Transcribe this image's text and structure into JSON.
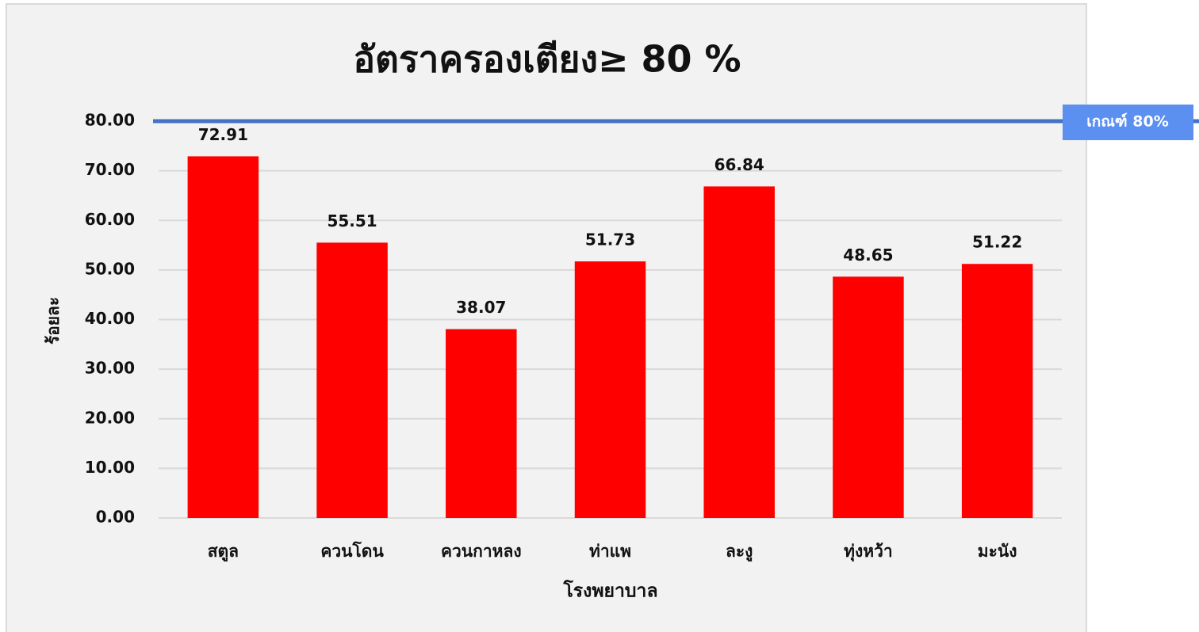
{
  "chart_data": {
    "type": "bar",
    "title": "อัตราครองเตียง≥ 80 %",
    "x_label": "โรงพยาบาล",
    "y_label": "ร้อยละ",
    "categories": [
      "สตูล",
      "ควนโดน",
      "ควนกาหลง",
      "ท่าแพ",
      "ละงู",
      "ทุ่งหว้า",
      "มะนัง"
    ],
    "values": [
      72.91,
      55.51,
      38.07,
      51.73,
      66.84,
      48.65,
      51.22
    ],
    "color": "#ff0000",
    "ylim": [
      0,
      80
    ],
    "yticks": [
      {
        "value": 0,
        "label": "0.00"
      },
      {
        "value": 10,
        "label": "10.00"
      },
      {
        "value": 20,
        "label": "20.00"
      },
      {
        "value": 30,
        "label": "30.00"
      },
      {
        "value": 40,
        "label": "40.00"
      },
      {
        "value": 50,
        "label": "50.00"
      },
      {
        "value": 60,
        "label": "60.00"
      },
      {
        "value": 70,
        "label": "70.00"
      },
      {
        "value": 80,
        "label": "80.00"
      }
    ],
    "grid": true,
    "threshold": {
      "value": 80,
      "label": "เกณฑ์ 80%",
      "color": "#4472c4"
    }
  }
}
